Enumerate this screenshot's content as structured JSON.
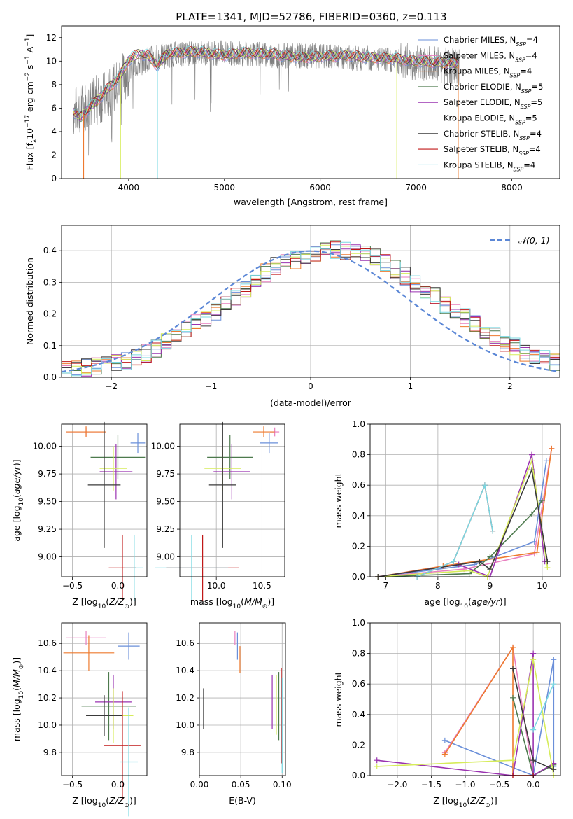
{
  "figure": {
    "title": "PLATE=1341, MJD=52786, FIBERID=0360, z=0.113"
  },
  "series_styles": [
    {
      "name": "Chabrier MILES, N_SSP=4",
      "label_main": "Chabrier MILES, N",
      "label_sub": "SSP",
      "label_tail": "=4",
      "color": "#6a8fd9"
    },
    {
      "name": "Salpeter MILES, N_SSP=4",
      "label_main": "Salpeter MILES, N",
      "label_sub": "SSP",
      "label_tail": "=4",
      "color": "#e87fbf"
    },
    {
      "name": "Kroupa MILES, N_SSP=4",
      "label_main": "Kroupa MILES, N",
      "label_sub": "SSP",
      "label_tail": "=4",
      "color": "#ee7a2e"
    },
    {
      "name": "Chabrier ELODIE, N_SSP=5",
      "label_main": "Chabrier ELODIE, N",
      "label_sub": "SSP",
      "label_tail": "=5",
      "color": "#4d7a4d"
    },
    {
      "name": "Salpeter ELODIE, N_SSP=5",
      "label_main": "Salpeter ELODIE, N",
      "label_sub": "SSP",
      "label_tail": "=5",
      "color": "#9a33b0"
    },
    {
      "name": "Kroupa ELODIE, N_SSP=5",
      "label_main": "Kroupa ELODIE, N",
      "label_sub": "SSP",
      "label_tail": "=5",
      "color": "#d6ec5a"
    },
    {
      "name": "Chabrier STELIB, N_SSP=4",
      "label_main": "Chabrier STELIB, N",
      "label_sub": "SSP",
      "label_tail": "=4",
      "color": "#3a3a3a"
    },
    {
      "name": "Salpeter STELIB, N_SSP=4",
      "label_main": "Salpeter STELIB, N",
      "label_sub": "SSP",
      "label_tail": "=4",
      "color": "#c01818"
    },
    {
      "name": "Kroupa STELIB, N_SSP=4",
      "label_main": "Kroupa STELIB, N",
      "label_sub": "SSP",
      "label_tail": "=4",
      "color": "#79d8e2"
    }
  ],
  "chart_data": [
    {
      "id": "spectrum",
      "type": "line",
      "xlabel": "wavelength [Angstrom, rest frame]",
      "ylabel": "Flux [f_λ 10^-17 erg cm^-2 s^-1 A^-1]",
      "xlim": [
        3300,
        8500
      ],
      "ylim": [
        0,
        13
      ],
      "xticks": [
        4000,
        5000,
        6000,
        7000,
        8000
      ],
      "yticks": [
        0,
        2,
        4,
        6,
        8,
        10,
        12
      ],
      "grid": false,
      "legend": "top-right",
      "data_color": "#808080",
      "data_envelope": {
        "x": [
          3420,
          3600,
          3800,
          4000,
          4200,
          4500,
          5000,
          5500,
          6000,
          6500,
          7000,
          7300,
          7450
        ],
        "y": [
          5.6,
          6.4,
          7.2,
          9.2,
          10.2,
          10.6,
          10.7,
          10.5,
          10.4,
          10.2,
          9.9,
          9.6,
          9.4
        ]
      },
      "model_curve": {
        "x": [
          3420,
          3500,
          3600,
          3700,
          3800,
          3900,
          4000,
          4100,
          4200,
          4300,
          4400,
          4500,
          4700,
          5000,
          5200,
          5500,
          5800,
          6000,
          6300,
          6500,
          6800,
          7000,
          7200,
          7400,
          7450
        ],
        "y": [
          5.7,
          5.2,
          6.1,
          6.9,
          7.8,
          8.6,
          10.1,
          10.6,
          10.5,
          9.6,
          10.6,
          10.7,
          10.8,
          10.5,
          10.7,
          10.6,
          10.3,
          10.4,
          10.5,
          10.3,
          10.2,
          10.0,
          9.9,
          9.8,
          9.9
        ]
      },
      "model_dips": [
        {
          "x": 3530,
          "y": 0.0,
          "color": "#ee7a2e"
        },
        {
          "x": 3915,
          "y": 0.0,
          "color": "#d6ec5a"
        },
        {
          "x": 4300,
          "y": 0.0,
          "color": "#79d8e2"
        },
        {
          "x": 6800,
          "y": 0.0,
          "color": "#d6ec5a"
        },
        {
          "x": 7440,
          "y": 0.0,
          "color": "#ee7a2e"
        }
      ]
    },
    {
      "id": "residuals",
      "type": "bar",
      "xlabel": "(data-model)/error",
      "ylabel": "Normed distribution",
      "xlim": [
        -2.5,
        2.5
      ],
      "ylim": [
        0,
        0.48
      ],
      "xticks": [
        -2,
        -1,
        0,
        1,
        2
      ],
      "yticks": [
        0.0,
        0.1,
        0.2,
        0.3,
        0.4
      ],
      "tick_decimals": 1,
      "grid": true,
      "legend": "top-right",
      "reference_curve": {
        "name": "𝒩(0, 1)",
        "color": "#5b87d6",
        "mu": 0,
        "sigma": 1
      },
      "bin_width": 0.1,
      "bin_start": -2.5,
      "base_profile": [
        0.02,
        0.025,
        0.03,
        0.035,
        0.04,
        0.045,
        0.05,
        0.06,
        0.075,
        0.09,
        0.11,
        0.13,
        0.15,
        0.17,
        0.19,
        0.21,
        0.23,
        0.255,
        0.28,
        0.31,
        0.33,
        0.35,
        0.36,
        0.37,
        0.38,
        0.39,
        0.4,
        0.405,
        0.4,
        0.4,
        0.39,
        0.38,
        0.36,
        0.34,
        0.32,
        0.3,
        0.28,
        0.26,
        0.23,
        0.21,
        0.19,
        0.17,
        0.15,
        0.13,
        0.11,
        0.095,
        0.08,
        0.07,
        0.06,
        0.05
      ]
    },
    {
      "id": "age-vs-Z",
      "type": "scatter",
      "xlabel": "Z [log10(Z/Z⊙)]",
      "ylabel": "age [log10(age/yr)]",
      "xlim": [
        -0.62,
        0.32
      ],
      "ylim": [
        8.82,
        10.2
      ],
      "xticks": [
        -0.5,
        0.0
      ],
      "yticks": [
        9.0,
        9.25,
        9.5,
        9.75,
        10.0
      ],
      "tick_decimals": 2,
      "grid": true,
      "points": [
        {
          "series": 0,
          "x": 0.22,
          "y": 10.03,
          "xerr": 0.08,
          "yerr": 0.09
        },
        {
          "series": 1,
          "x": -0.35,
          "y": 10.13,
          "xerr": 0.22,
          "yerr": 0.04
        },
        {
          "series": 2,
          "x": -0.35,
          "y": 10.13,
          "xerr": 0.22,
          "yerr": 0.05
        },
        {
          "series": 3,
          "x": 0.0,
          "y": 9.9,
          "xerr": 0.3,
          "yerr": 0.2
        },
        {
          "series": 4,
          "x": -0.02,
          "y": 9.77,
          "xerr": 0.18,
          "yerr": 0.25
        },
        {
          "series": 5,
          "x": -0.05,
          "y": 9.8,
          "xerr": 0.15,
          "yerr": 0.2
        },
        {
          "series": 6,
          "x": -0.15,
          "y": 9.65,
          "xerr": 0.18,
          "yerr": 0.57
        },
        {
          "series": 7,
          "x": 0.05,
          "y": 8.9,
          "xerr": 0.15,
          "yerr": 0.3
        },
        {
          "series": 8,
          "x": 0.18,
          "y": 8.9,
          "xerr": 0.1,
          "yerr": 0.3
        }
      ]
    },
    {
      "id": "age-vs-mass",
      "type": "scatter",
      "xlabel": "mass [log10(M/M⊙)]",
      "ylabel": "",
      "xlim": [
        9.6,
        10.75
      ],
      "ylim": [
        8.82,
        10.2
      ],
      "xticks": [
        10.0,
        10.5
      ],
      "yticks": [
        9.0,
        9.25,
        9.5,
        9.75,
        10.0
      ],
      "tick_decimals": 2,
      "grid": true,
      "points": [
        {
          "series": 0,
          "x": 10.58,
          "y": 10.03,
          "xerr": 0.1,
          "yerr": 0.09
        },
        {
          "series": 1,
          "x": 10.64,
          "y": 10.13,
          "xerr": 0.05,
          "yerr": 0.04
        },
        {
          "series": 2,
          "x": 10.52,
          "y": 10.13,
          "xerr": 0.12,
          "yerr": 0.05
        },
        {
          "series": 3,
          "x": 10.15,
          "y": 9.9,
          "xerr": 0.25,
          "yerr": 0.2
        },
        {
          "series": 4,
          "x": 10.17,
          "y": 9.77,
          "xerr": 0.2,
          "yerr": 0.25
        },
        {
          "series": 5,
          "x": 10.07,
          "y": 9.8,
          "xerr": 0.2,
          "yerr": 0.2
        },
        {
          "series": 6,
          "x": 10.07,
          "y": 9.65,
          "xerr": 0.15,
          "yerr": 0.57
        },
        {
          "series": 7,
          "x": 9.85,
          "y": 8.9,
          "xerr": 0.4,
          "yerr": 0.3
        },
        {
          "series": 8,
          "x": 9.73,
          "y": 8.9,
          "xerr": 0.4,
          "yerr": 0.3
        }
      ]
    },
    {
      "id": "massweight-vs-age",
      "type": "line",
      "xlabel": "age [log10(age/yr)]",
      "ylabel": "mass weight",
      "xlim": [
        6.7,
        10.35
      ],
      "ylim": [
        0,
        1.0
      ],
      "xticks": [
        7,
        8,
        9,
        10
      ],
      "yticks": [
        0.0,
        0.2,
        0.4,
        0.6,
        0.8,
        1.0
      ],
      "tick_decimals": 1,
      "grid": true,
      "series": [
        {
          "series": 0,
          "x": [
            6.85,
            8.7,
            9.85,
            10.08
          ],
          "y": [
            0.0,
            0.08,
            0.23,
            0.76
          ]
        },
        {
          "series": 1,
          "x": [
            6.85,
            8.5,
            9.85,
            10.18
          ],
          "y": [
            0.0,
            0.05,
            0.15,
            0.84
          ]
        },
        {
          "series": 2,
          "x": [
            6.85,
            8.1,
            9.9,
            10.18
          ],
          "y": [
            0.0,
            0.07,
            0.16,
            0.84
          ]
        },
        {
          "series": 3,
          "x": [
            6.85,
            8.6,
            9.0,
            9.8,
            10.0
          ],
          "y": [
            0.0,
            0.02,
            0.13,
            0.41,
            0.5
          ]
        },
        {
          "series": 4,
          "x": [
            6.85,
            8.4,
            9.0,
            9.8,
            10.05
          ],
          "y": [
            0.0,
            0.08,
            0.0,
            0.8,
            0.1
          ]
        },
        {
          "series": 5,
          "x": [
            6.85,
            8.6,
            8.95,
            9.8,
            10.1
          ],
          "y": [
            0.0,
            0.04,
            0.0,
            0.76,
            0.06
          ]
        },
        {
          "series": 6,
          "x": [
            6.85,
            8.8,
            9.0,
            9.8,
            10.1
          ],
          "y": [
            0.0,
            0.1,
            0.05,
            0.7,
            0.1
          ]
        },
        {
          "series": 7,
          "x": [
            7.6,
            8.3,
            8.9,
            9.05
          ],
          "y": [
            0.0,
            0.1,
            0.6,
            0.3
          ]
        },
        {
          "series": 8,
          "x": [
            7.6,
            8.3,
            8.9,
            9.05
          ],
          "y": [
            0.0,
            0.1,
            0.6,
            0.3
          ]
        }
      ]
    },
    {
      "id": "mass-vs-Z",
      "type": "scatter",
      "xlabel": "Z [log10(Z/Z⊙)]",
      "ylabel": "mass [log10(M/M⊙)]",
      "xlim": [
        -0.62,
        0.32
      ],
      "ylim": [
        9.63,
        10.75
      ],
      "xticks": [
        -0.5,
        0.0
      ],
      "yticks": [
        9.8,
        10.0,
        10.2,
        10.4,
        10.6
      ],
      "tick_decimals": 1,
      "grid": true,
      "points": [
        {
          "series": 0,
          "x": 0.12,
          "y": 10.58,
          "xerr": 0.12,
          "yerr": 0.1
        },
        {
          "series": 1,
          "x": -0.35,
          "y": 10.64,
          "xerr": 0.22,
          "yerr": 0.05
        },
        {
          "series": 2,
          "x": -0.32,
          "y": 10.53,
          "xerr": 0.28,
          "yerr": 0.13
        },
        {
          "series": 3,
          "x": -0.1,
          "y": 10.14,
          "xerr": 0.3,
          "yerr": 0.25
        },
        {
          "series": 4,
          "x": -0.05,
          "y": 10.17,
          "xerr": 0.2,
          "yerr": 0.2
        },
        {
          "series": 5,
          "x": -0.05,
          "y": 10.07,
          "xerr": 0.22,
          "yerr": 0.2
        },
        {
          "series": 6,
          "x": -0.15,
          "y": 10.07,
          "xerr": 0.2,
          "yerr": 0.15
        },
        {
          "series": 7,
          "x": 0.05,
          "y": 9.85,
          "xerr": 0.2,
          "yerr": 0.4
        },
        {
          "series": 8,
          "x": 0.12,
          "y": 9.73,
          "xerr": 0.1,
          "yerr": 0.4
        }
      ]
    },
    {
      "id": "mass-vs-ebv",
      "type": "scatter",
      "xlabel": "E(B-V)",
      "ylabel": "",
      "xlim": [
        0.0,
        0.104
      ],
      "ylim": [
        9.63,
        10.75
      ],
      "xticks": [
        0.0,
        0.05,
        0.1
      ],
      "yticks": [
        9.8,
        10.0,
        10.2,
        10.4,
        10.6
      ],
      "tick_decimals": 1,
      "grid": true,
      "points": [
        {
          "series": 0,
          "x": 0.046,
          "y": 10.58,
          "xerr": 0,
          "yerr": 0.1
        },
        {
          "series": 1,
          "x": 0.043,
          "y": 10.64,
          "xerr": 0,
          "yerr": 0.05
        },
        {
          "series": 2,
          "x": 0.049,
          "y": 10.48,
          "xerr": 0,
          "yerr": 0.1
        },
        {
          "series": 3,
          "x": 0.096,
          "y": 10.14,
          "xerr": 0,
          "yerr": 0.25
        },
        {
          "series": 4,
          "x": 0.088,
          "y": 10.17,
          "xerr": 0,
          "yerr": 0.2
        },
        {
          "series": 5,
          "x": 0.093,
          "y": 10.15,
          "xerr": 0,
          "yerr": 0.22
        },
        {
          "series": 6,
          "x": 0.005,
          "y": 10.12,
          "xerr": 0,
          "yerr": 0.15
        },
        {
          "series": 7,
          "x": 0.099,
          "y": 10.07,
          "xerr": 0,
          "yerr": 0.35
        },
        {
          "series": 8,
          "x": 0.1,
          "y": 10.0,
          "xerr": 0,
          "yerr": 0.35
        }
      ]
    },
    {
      "id": "massweight-vs-Z",
      "type": "line",
      "xlabel": "Z [log10(Z/Z⊙)]",
      "ylabel": "mass weight",
      "xlim": [
        -2.4,
        0.4
      ],
      "ylim": [
        0,
        1.0
      ],
      "xticks": [
        -2.0,
        -1.5,
        -1.0,
        -0.5,
        0.0
      ],
      "yticks": [
        0.0,
        0.2,
        0.4,
        0.6,
        0.8,
        1.0
      ],
      "tick_decimals": 1,
      "grid": true,
      "series": [
        {
          "series": 0,
          "x": [
            -1.3,
            0.0,
            0.3,
            0.3
          ],
          "y": [
            0.23,
            0.0,
            0.76,
            0.06
          ]
        },
        {
          "series": 1,
          "x": [
            -1.3,
            -0.3,
            0.0
          ],
          "y": [
            0.15,
            0.84,
            0.0
          ]
        },
        {
          "series": 2,
          "x": [
            -1.3,
            -0.3,
            -0.3,
            0.0
          ],
          "y": [
            0.14,
            0.84,
            0.0,
            0.0
          ]
        },
        {
          "series": 3,
          "x": [
            -0.3,
            0.0,
            0.3
          ],
          "y": [
            0.51,
            0.0,
            0.07
          ]
        },
        {
          "series": 4,
          "x": [
            -2.3,
            -0.3,
            0.0,
            0.0,
            0.3
          ],
          "y": [
            0.1,
            0.0,
            0.8,
            0.0,
            0.08
          ]
        },
        {
          "series": 5,
          "x": [
            -2.3,
            -0.3,
            0.0,
            0.3
          ],
          "y": [
            0.06,
            0.1,
            0.76,
            0.0
          ]
        },
        {
          "series": 6,
          "x": [
            -0.3,
            0.0,
            0.3
          ],
          "y": [
            0.7,
            0.1,
            0.04
          ]
        },
        {
          "series": 7,
          "x": [
            -0.3,
            0.0
          ],
          "y": [
            0.0,
            0.0
          ]
        },
        {
          "series": 8,
          "x": [
            0.0,
            0.3
          ],
          "y": [
            0.3,
            0.6
          ]
        }
      ]
    }
  ]
}
